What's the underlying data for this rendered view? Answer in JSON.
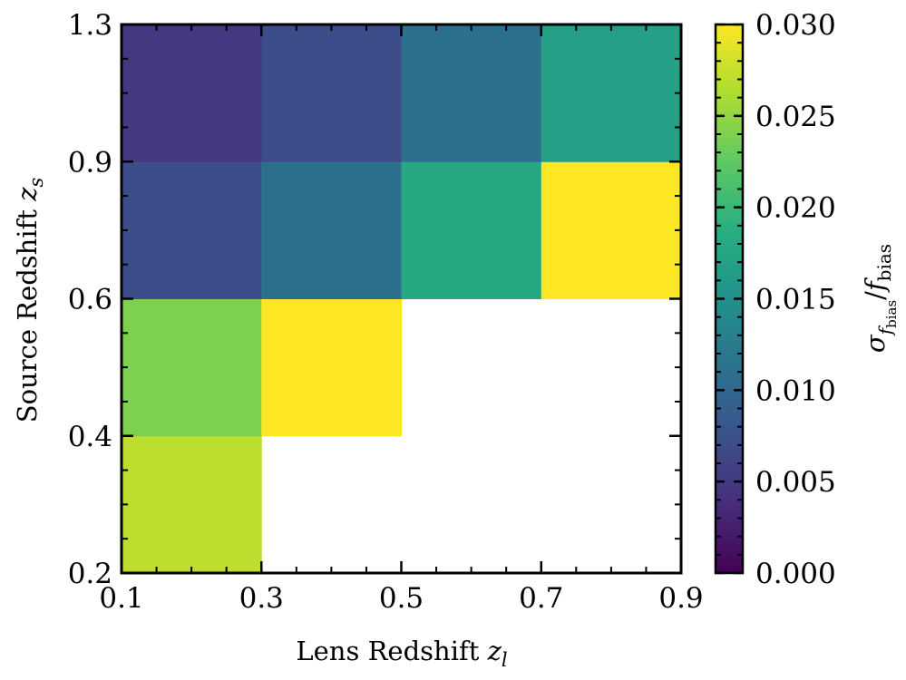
{
  "chart_data": {
    "type": "heatmap",
    "title": "",
    "xlabel": "Lens Redshift z_l",
    "xlabel_text": "Lens Redshift",
    "xlabel_var": "z",
    "xlabel_sub": "l",
    "ylabel": "Source Redshift z_s",
    "ylabel_text": "Source Redshift",
    "ylabel_var": "z",
    "ylabel_sub": "s",
    "x_edges": [
      0.1,
      0.3,
      0.5,
      0.7,
      0.9
    ],
    "y_edges": [
      0.2,
      0.4,
      0.6,
      0.9,
      1.3
    ],
    "x_tick_labels": [
      "0.1",
      "0.3",
      "0.5",
      "0.7",
      "0.9"
    ],
    "y_tick_labels": [
      "0.2",
      "0.4",
      "0.6",
      "0.9",
      "1.3"
    ],
    "values": [
      [
        0.027,
        null,
        null,
        null
      ],
      [
        0.024,
        0.03,
        null,
        null
      ],
      [
        0.007,
        0.011,
        0.018,
        0.03
      ],
      [
        0.005,
        0.007,
        0.011,
        0.017
      ]
    ],
    "colorbar": {
      "label": "σ_fbias / f_bias",
      "label_sigma": "σ",
      "label_f": "f",
      "label_sub": "bias",
      "label_slash": "/",
      "vmin": 0.0,
      "vmax": 0.03,
      "colormap": "viridis",
      "tick_labels": [
        "0.000",
        "0.005",
        "0.010",
        "0.015",
        "0.020",
        "0.025",
        "0.030"
      ]
    },
    "grid": false
  }
}
